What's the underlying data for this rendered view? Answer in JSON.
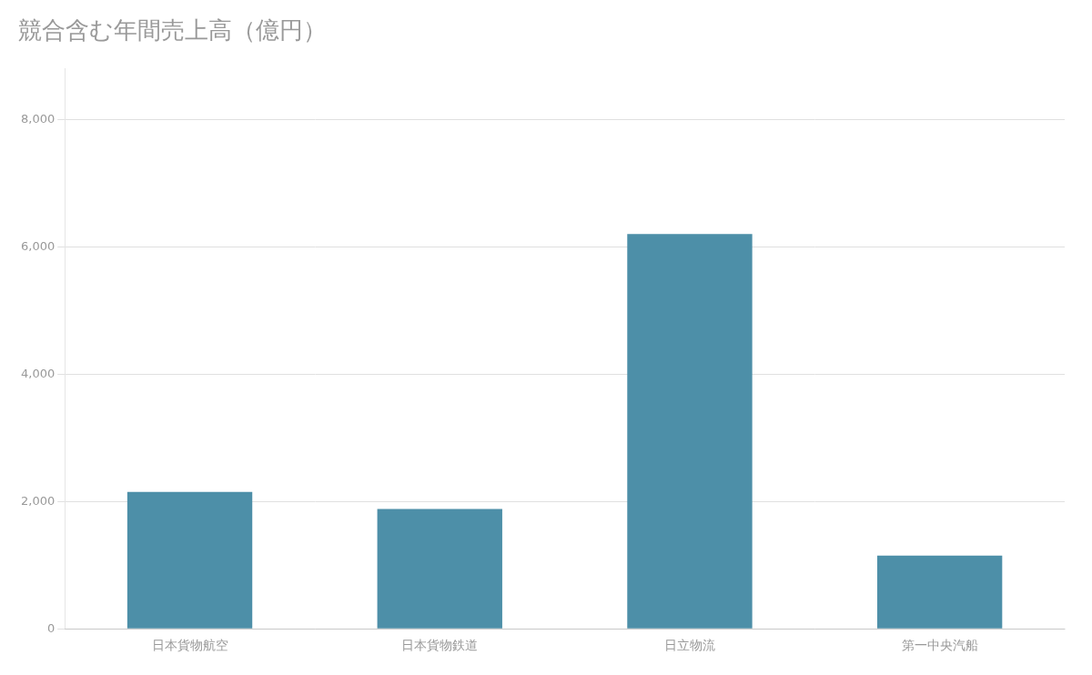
{
  "chart_data": {
    "type": "bar",
    "title": "競合含む年間売上高（億円）",
    "categories": [
      "日本貨物航空",
      "日本貨物鉄道",
      "日立物流",
      "第一中央汽船"
    ],
    "values": [
      2150,
      1880,
      6200,
      1150
    ],
    "color": "#4d8fa8",
    "ylim": [
      0,
      8800
    ],
    "yticks": [
      0,
      {
        "value": 2000,
        "label": "2,000"
      },
      {
        "value": 4000,
        "label": "4,000"
      },
      {
        "value": 6000,
        "label": "6,000"
      },
      {
        "value": 8000,
        "label": "8,000"
      }
    ],
    "grid": true
  }
}
